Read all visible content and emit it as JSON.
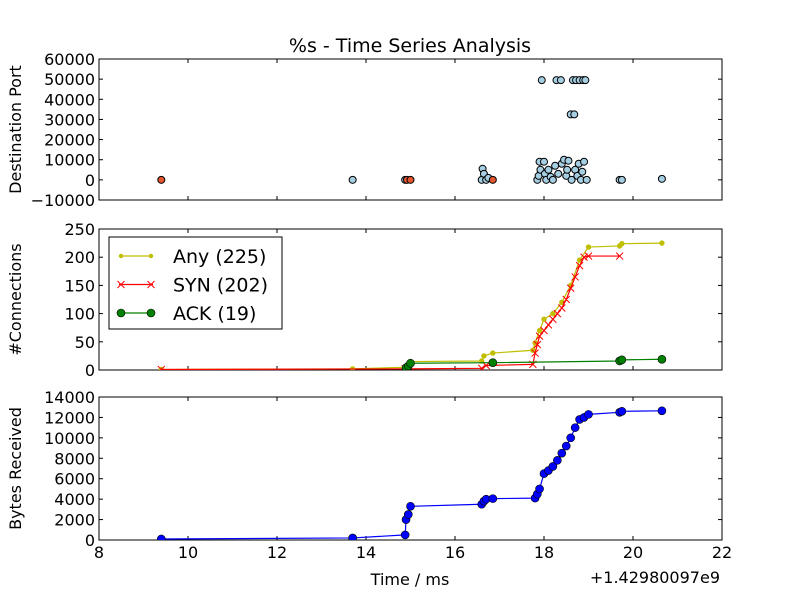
{
  "chart_data": {
    "title": "%s - Time Series Analysis",
    "xlabel": "Time / ms",
    "x_offset_label": "+1.42980097e9",
    "xlim": [
      8,
      22
    ],
    "xticks": [
      "8",
      "10",
      "12",
      "14",
      "16",
      "18",
      "20",
      "22"
    ],
    "panels": [
      {
        "type": "scatter",
        "ylabel": "Destination Port",
        "ylim": [
          -10000,
          60000
        ],
        "yticks": [
          "−10000",
          "0",
          "10000",
          "20000",
          "30000",
          "40000",
          "50000",
          "60000"
        ],
        "series": [
          {
            "color": "#a6cee3",
            "points": [
              [
                13.7,
                0
              ],
              [
                14.88,
                0
              ],
              [
                16.6,
                0
              ],
              [
                16.62,
                5500
              ],
              [
                16.65,
                3000
              ],
              [
                16.7,
                0
              ],
              [
                16.75,
                1000
              ],
              [
                17.85,
                0
              ],
              [
                17.88,
                2000
              ],
              [
                17.9,
                9000
              ],
              [
                17.92,
                5000
              ],
              [
                17.95,
                49500
              ],
              [
                18.0,
                9000
              ],
              [
                18.02,
                3000
              ],
              [
                18.05,
                0
              ],
              [
                18.1,
                5000
              ],
              [
                18.15,
                1500
              ],
              [
                18.2,
                0
              ],
              [
                18.25,
                7000
              ],
              [
                18.28,
                49500
              ],
              [
                18.32,
                3000
              ],
              [
                18.38,
                49500
              ],
              [
                18.4,
                8000
              ],
              [
                18.45,
                10000
              ],
              [
                18.5,
                2000
              ],
              [
                18.52,
                5000
              ],
              [
                18.55,
                9500
              ],
              [
                18.6,
                32500
              ],
              [
                18.62,
                0
              ],
              [
                18.65,
                49500
              ],
              [
                18.68,
                32500
              ],
              [
                18.7,
                5000
              ],
              [
                18.72,
                49500
              ],
              [
                18.75,
                2000
              ],
              [
                18.78,
                8000
              ],
              [
                18.8,
                49500
              ],
              [
                18.83,
                0
              ],
              [
                18.86,
                4000
              ],
              [
                18.88,
                49500
              ],
              [
                18.9,
                9000
              ],
              [
                18.93,
                49500
              ],
              [
                18.96,
                0
              ],
              [
                19.7,
                0
              ],
              [
                19.75,
                0
              ],
              [
                20.65,
                500
              ]
            ]
          },
          {
            "color": "#e4572e",
            "points": [
              [
                9.4,
                0
              ],
              [
                14.92,
                0
              ],
              [
                15.0,
                0
              ],
              [
                16.85,
                0
              ]
            ]
          }
        ]
      },
      {
        "type": "line",
        "ylabel": "#Connections",
        "ylim": [
          0,
          250
        ],
        "yticks": [
          "0",
          "50",
          "100",
          "150",
          "200",
          "250"
        ],
        "legend": "upper-left",
        "series": [
          {
            "name": "Any (225)",
            "color": "#bfbf00",
            "marker": "dot",
            "x": [
              9.4,
              13.7,
              14.9,
              15.0,
              16.6,
              16.65,
              16.85,
              17.75,
              17.8,
              17.9,
              18.0,
              18.2,
              18.4,
              18.6,
              18.8,
              19.0,
              19.7,
              19.75,
              20.65
            ],
            "y": [
              1,
              2,
              5,
              15,
              16,
              25,
              30,
              35,
              48,
              70,
              90,
              100,
              120,
              150,
              195,
              218,
              220,
              224,
              225
            ]
          },
          {
            "name": "SYN (202)",
            "color": "#ff0000",
            "marker": "x",
            "x": [
              9.4,
              14.88,
              16.6,
              16.7,
              17.75,
              17.8,
              17.85,
              17.9,
              18.0,
              18.1,
              18.2,
              18.3,
              18.4,
              18.5,
              18.6,
              18.7,
              18.8,
              18.9,
              19.0,
              19.7
            ],
            "y": [
              1,
              2,
              3,
              8,
              10,
              30,
              45,
              60,
              70,
              80,
              90,
              100,
              110,
              125,
              145,
              165,
              185,
              200,
              202,
              202
            ]
          },
          {
            "name": "ACK (19)",
            "color": "#008000",
            "marker": "circle",
            "x": [
              14.9,
              14.95,
              15.0,
              16.85,
              19.7,
              19.75,
              20.65
            ],
            "y": [
              4,
              7,
              12,
              13,
              16,
              18,
              19
            ]
          }
        ]
      },
      {
        "type": "line",
        "ylabel": "Bytes Received",
        "ylim": [
          0,
          14000
        ],
        "yticks": [
          "0",
          "2000",
          "4000",
          "6000",
          "8000",
          "10000",
          "12000",
          "14000"
        ],
        "series": [
          {
            "color": "#0000ff",
            "marker": "circle",
            "x": [
              9.4,
              13.7,
              14.88,
              14.9,
              14.95,
              15.0,
              16.6,
              16.65,
              16.7,
              16.85,
              17.8,
              17.85,
              17.9,
              18.0,
              18.1,
              18.2,
              18.3,
              18.4,
              18.5,
              18.6,
              18.7,
              18.8,
              18.9,
              19.0,
              19.7,
              19.75,
              20.65
            ],
            "y": [
              100,
              200,
              500,
              2000,
              2500,
              3300,
              3500,
              3800,
              4000,
              4050,
              4100,
              4500,
              5000,
              6500,
              6800,
              7200,
              7800,
              8500,
              9200,
              10000,
              11000,
              11800,
              12000,
              12300,
              12500,
              12600,
              12650
            ]
          }
        ]
      }
    ]
  }
}
